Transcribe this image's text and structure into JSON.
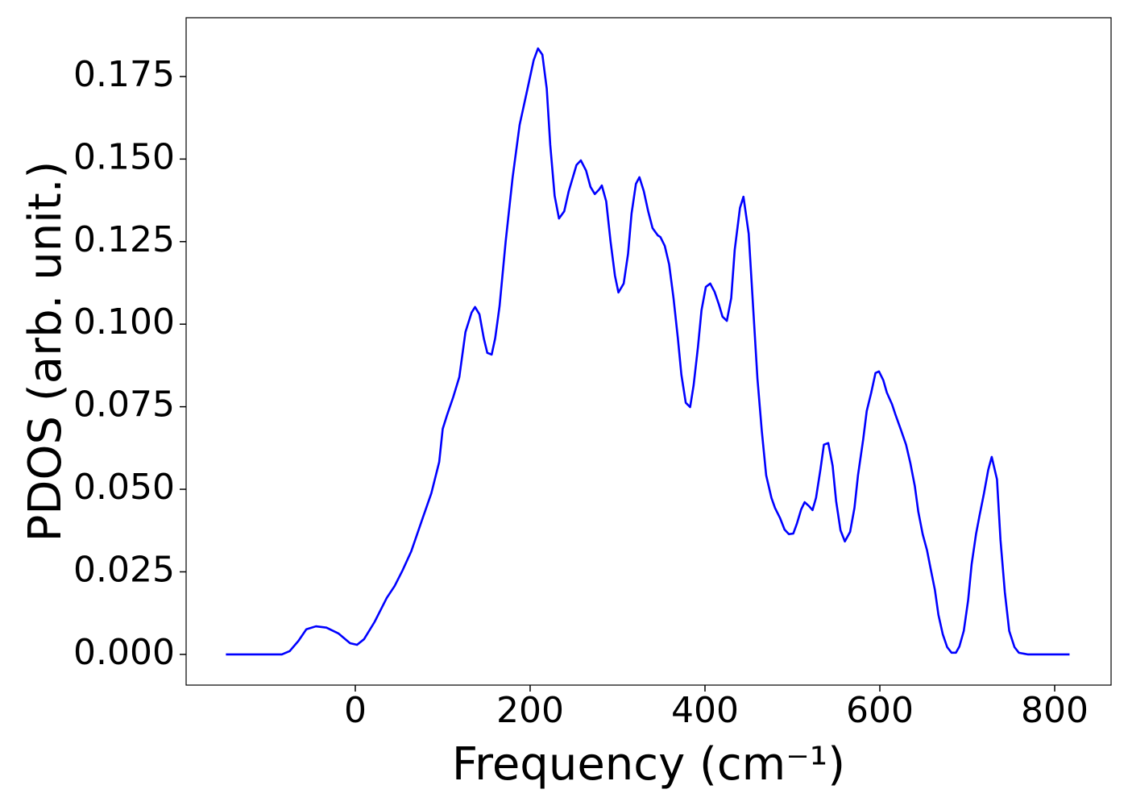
{
  "chart_data": {
    "type": "line",
    "xlabel": "Frequency (cm⁻¹)",
    "ylabel": "PDOS (arb. unit.)",
    "xlim": [
      -193.5,
      864.5
    ],
    "ylim": [
      -0.0093,
      0.1928
    ],
    "xticks": [
      0,
      200,
      400,
      600,
      800
    ],
    "yticks": [
      {
        "value": 0,
        "label": "0.000"
      },
      {
        "value": 0.025,
        "label": "0.025"
      },
      {
        "value": 0.05,
        "label": "0.050"
      },
      {
        "value": 0.075,
        "label": "0.075"
      },
      {
        "value": 0.1,
        "label": "0.100"
      },
      {
        "value": 0.125,
        "label": "0.125"
      },
      {
        "value": 0.15,
        "label": "0.150"
      },
      {
        "value": 0.175,
        "label": "0.175"
      }
    ],
    "color": "#0000ff",
    "x": [
      -148,
      -84,
      -75,
      -65,
      -56,
      -45,
      -33,
      -19,
      -6,
      2,
      10,
      22,
      36,
      45,
      54,
      64,
      77,
      87,
      96,
      100,
      105,
      112,
      119,
      126,
      133,
      137,
      142,
      147,
      151,
      156,
      160,
      165,
      172,
      180,
      188,
      197,
      204,
      209,
      214,
      219,
      223,
      228,
      233,
      239,
      244,
      253,
      258,
      264,
      269,
      274,
      279,
      282,
      287,
      292,
      297,
      301,
      307,
      312,
      316,
      321,
      325,
      330,
      335,
      340,
      346,
      349,
      354,
      359,
      364,
      369,
      373,
      378,
      383,
      387,
      392,
      396,
      401,
      406,
      411,
      416,
      420,
      425,
      430,
      434,
      440,
      444,
      450,
      455,
      460,
      465,
      470,
      476,
      480,
      486,
      491,
      496,
      501,
      505,
      510,
      514,
      519,
      523,
      527,
      532,
      536,
      541,
      546,
      550,
      555,
      560,
      566,
      571,
      575,
      581,
      585,
      590,
      595,
      599,
      604,
      608,
      614,
      618,
      624,
      630,
      635,
      640,
      644,
      649,
      654,
      658,
      663,
      667,
      672,
      677,
      682,
      687,
      691,
      696,
      701,
      705,
      710,
      714,
      719,
      724,
      728,
      734,
      738,
      743,
      748,
      754,
      759,
      769,
      817
    ],
    "values": [
      0,
      0,
      0.001,
      0.0041,
      0.0076,
      0.0085,
      0.0081,
      0.0063,
      0.0034,
      0.0029,
      0.0046,
      0.0098,
      0.0171,
      0.0207,
      0.0254,
      0.0312,
      0.0412,
      0.0488,
      0.0583,
      0.0683,
      0.0725,
      0.0779,
      0.084,
      0.0976,
      0.1035,
      0.1052,
      0.103,
      0.0957,
      0.0913,
      0.0908,
      0.0957,
      0.1054,
      0.125,
      0.1445,
      0.1604,
      0.1713,
      0.1799,
      0.1835,
      0.1816,
      0.1713,
      0.1543,
      0.1389,
      0.132,
      0.1342,
      0.1401,
      0.1482,
      0.1496,
      0.1465,
      0.1416,
      0.1394,
      0.1408,
      0.142,
      0.1372,
      0.125,
      0.1147,
      0.1096,
      0.1123,
      0.1213,
      0.1335,
      0.1425,
      0.1445,
      0.1403,
      0.1342,
      0.1291,
      0.1269,
      0.1264,
      0.1237,
      0.1181,
      0.1079,
      0.0957,
      0.0847,
      0.0762,
      0.0749,
      0.0815,
      0.0932,
      0.1042,
      0.1113,
      0.1123,
      0.1098,
      0.1059,
      0.1023,
      0.101,
      0.1079,
      0.1225,
      0.1352,
      0.1386,
      0.1274,
      0.1054,
      0.0835,
      0.0676,
      0.0542,
      0.0474,
      0.0444,
      0.0412,
      0.0378,
      0.0364,
      0.0366,
      0.0395,
      0.0439,
      0.0461,
      0.0449,
      0.0437,
      0.0474,
      0.0559,
      0.0635,
      0.064,
      0.0571,
      0.0464,
      0.0376,
      0.0342,
      0.0371,
      0.0444,
      0.0542,
      0.0652,
      0.0737,
      0.0791,
      0.0852,
      0.0857,
      0.083,
      0.0793,
      0.0757,
      0.0725,
      0.0681,
      0.0635,
      0.0578,
      0.051,
      0.0432,
      0.0364,
      0.0315,
      0.0261,
      0.0195,
      0.012,
      0.0061,
      0.0022,
      0.0005,
      0.0005,
      0.0024,
      0.0071,
      0.0164,
      0.0273,
      0.0364,
      0.042,
      0.0486,
      0.0559,
      0.0598,
      0.053,
      0.0347,
      0.0188,
      0.0071,
      0.0022,
      0.0005,
      0,
      0
    ]
  }
}
